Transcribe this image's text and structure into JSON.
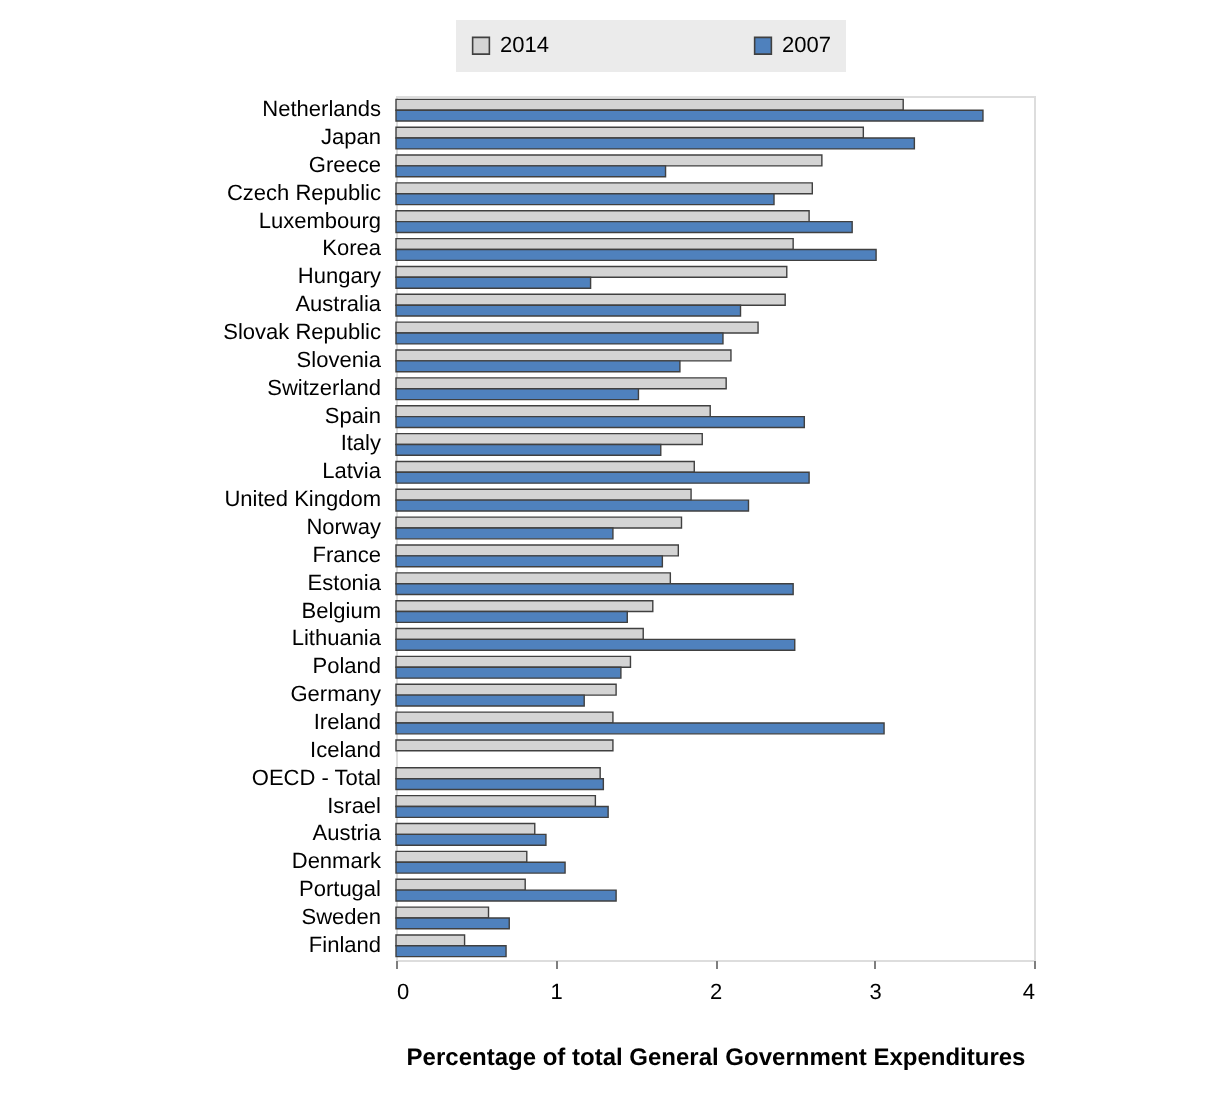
{
  "chart_data": {
    "type": "bar",
    "orientation": "horizontal",
    "xlabel": "Percentage of total General Government Expenditures",
    "categories": [
      "Netherlands",
      "Japan",
      "Greece",
      "Czech Republic",
      "Luxembourg",
      "Korea",
      "Hungary",
      "Australia",
      "Slovak Republic",
      "Slovenia",
      "Switzerland",
      "Spain",
      "Italy",
      "Latvia",
      "United Kingdom",
      "Norway",
      "France",
      "Estonia",
      "Belgium",
      "Lithuania",
      "Poland",
      "Germany",
      "Ireland",
      "Iceland",
      "OECD - Total",
      "Israel",
      "Austria",
      "Denmark",
      "Portugal",
      "Sweden",
      "Finland"
    ],
    "series": [
      {
        "name": "2014",
        "color": "#d4d4d4",
        "values": [
          3.18,
          2.93,
          2.67,
          2.61,
          2.59,
          2.49,
          2.45,
          2.44,
          2.27,
          2.1,
          2.07,
          1.97,
          1.92,
          1.87,
          1.85,
          1.79,
          1.77,
          1.72,
          1.61,
          1.55,
          1.47,
          1.38,
          1.36,
          1.36,
          1.28,
          1.25,
          0.87,
          0.82,
          0.81,
          0.58,
          0.43
        ]
      },
      {
        "name": "2007",
        "color": "#4f81bd",
        "values": [
          3.68,
          3.25,
          1.69,
          2.37,
          2.86,
          3.01,
          1.22,
          2.16,
          2.05,
          1.78,
          1.52,
          2.56,
          1.66,
          2.59,
          2.21,
          1.36,
          1.67,
          2.49,
          1.45,
          2.5,
          1.41,
          1.18,
          3.06,
          null,
          1.3,
          1.33,
          0.94,
          1.06,
          1.38,
          0.71,
          0.69
        ]
      }
    ],
    "xlim": [
      0,
      4
    ],
    "xticks": [
      0,
      1,
      2,
      3,
      4
    ],
    "legend": "top"
  }
}
